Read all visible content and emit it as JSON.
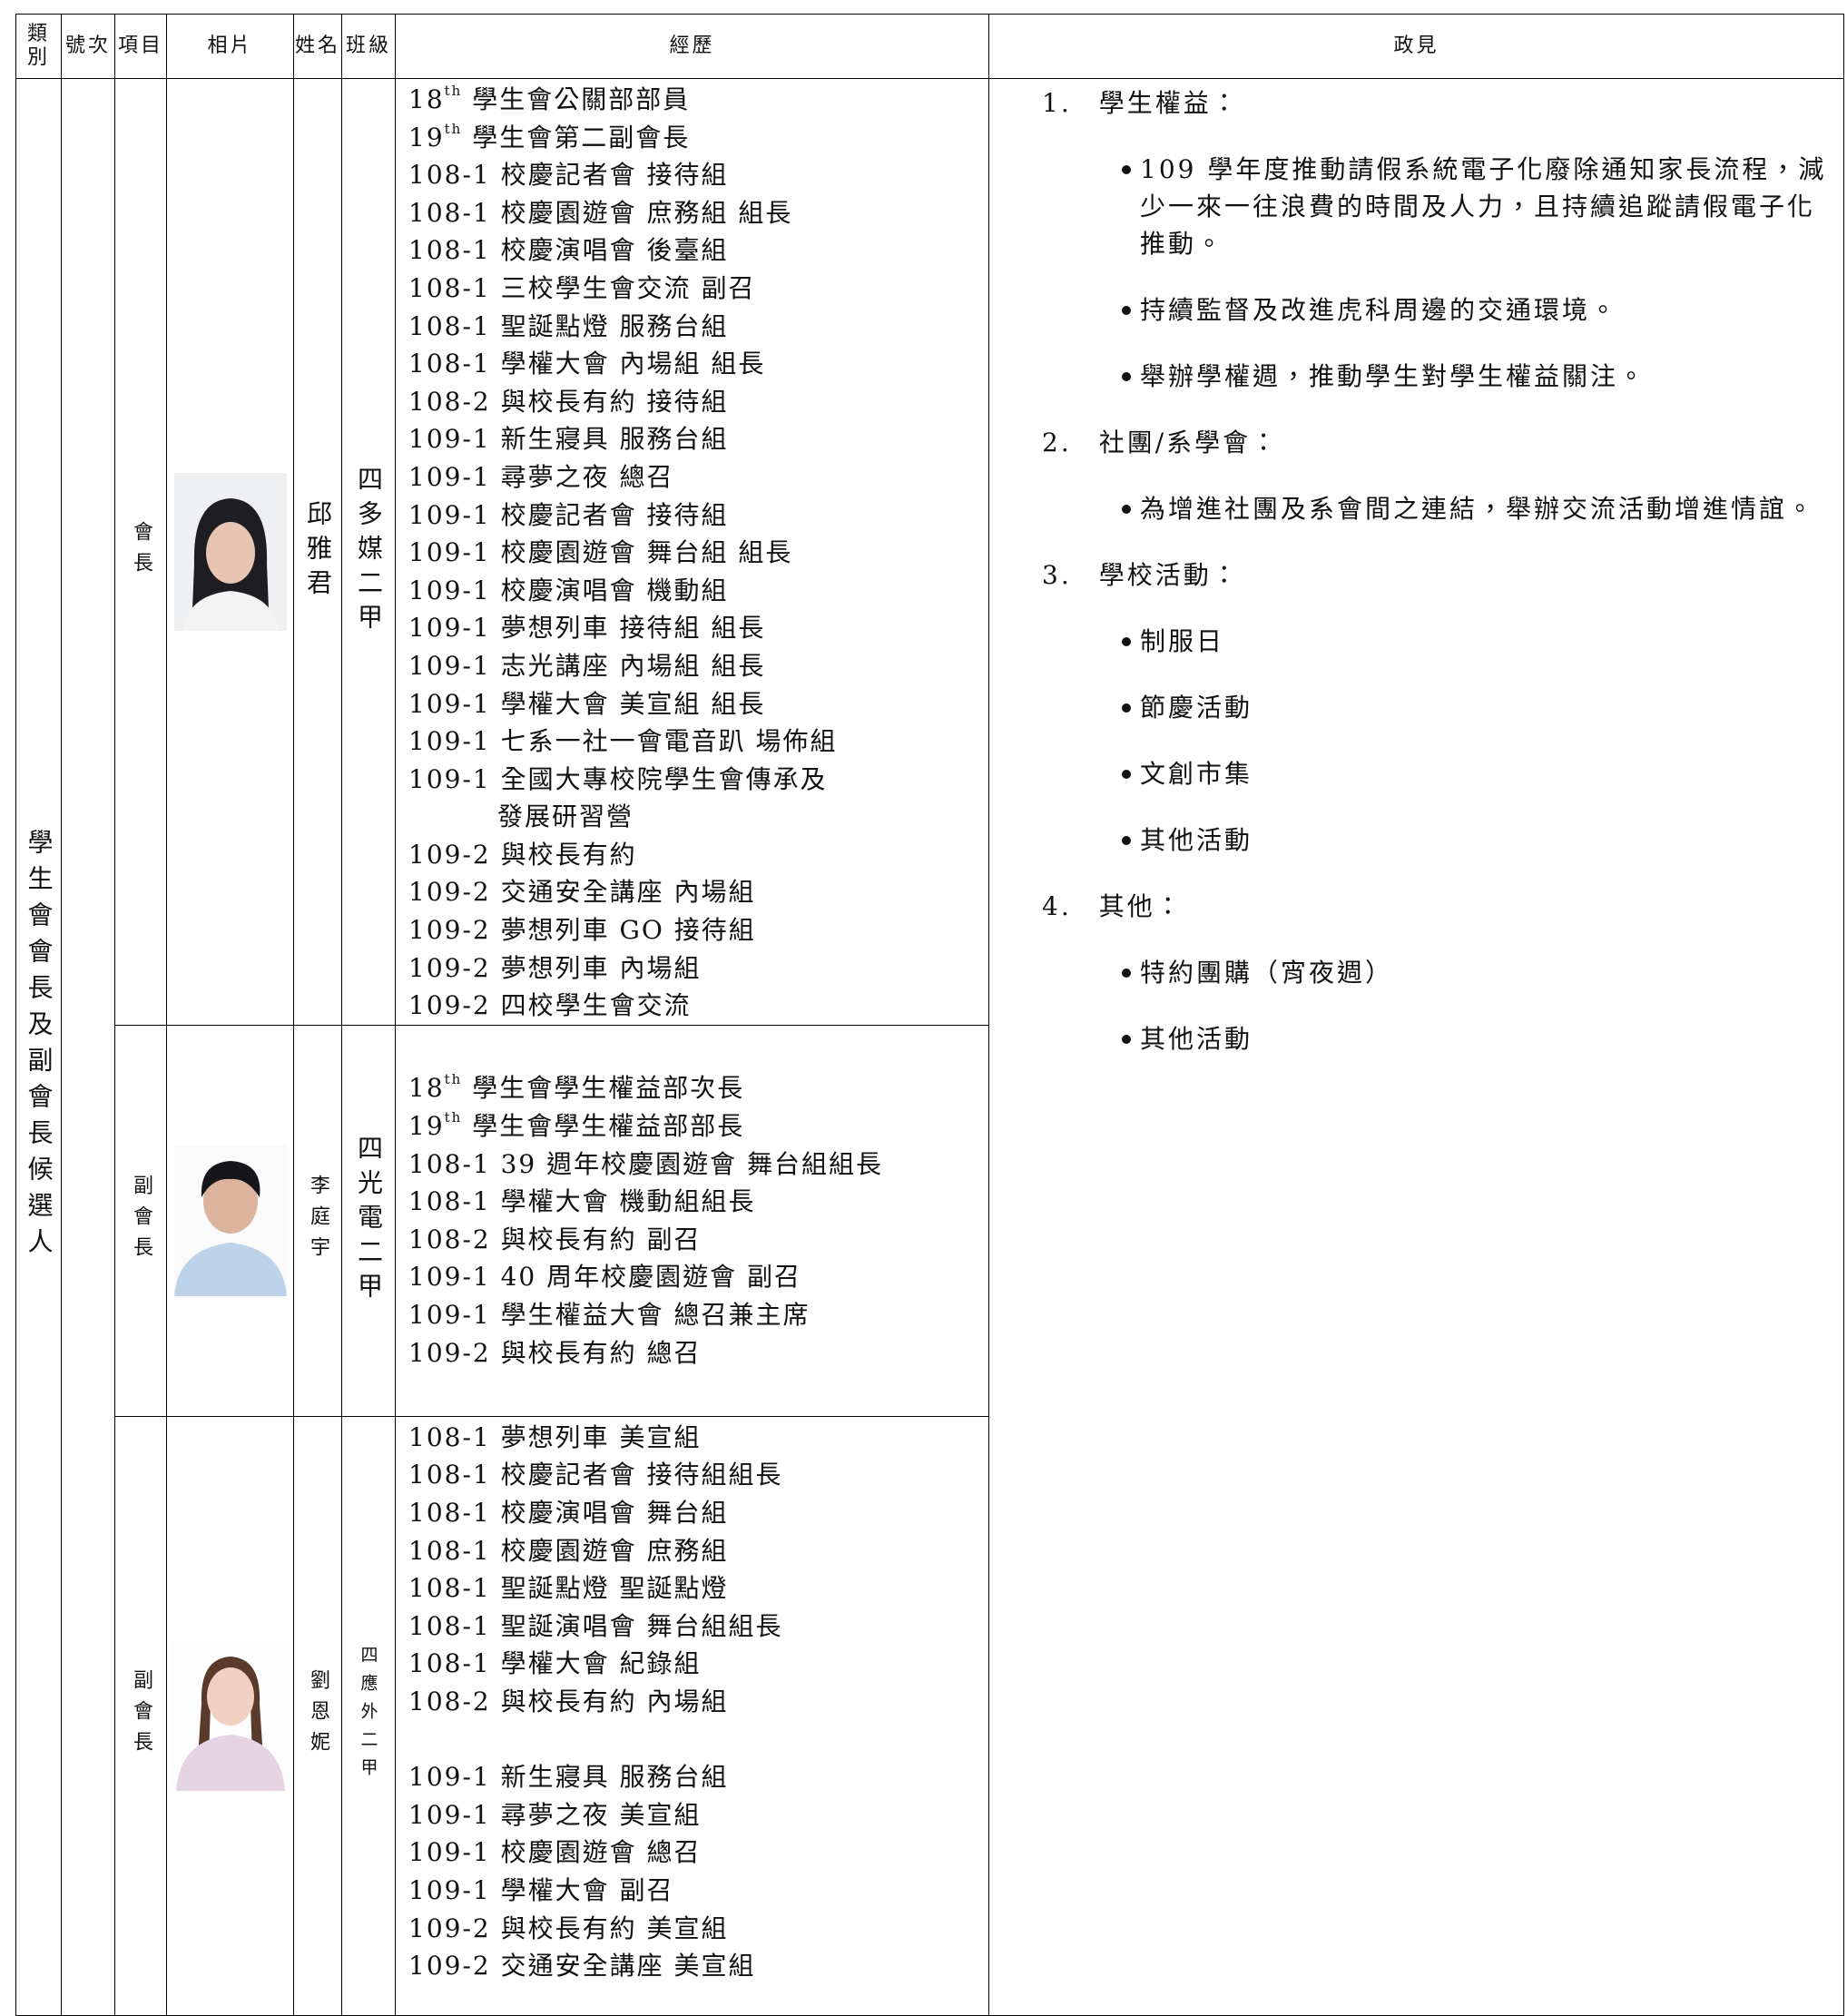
{
  "table": {
    "headers": [
      "類別",
      "號次",
      "項目",
      "相片",
      "姓名",
      "班級",
      "經歷",
      "政見"
    ],
    "category": "學生會會長及副會長候選人",
    "candidates": [
      {
        "role": "會長",
        "name": "邱雅君",
        "class": "四多媒二甲",
        "experience_groups": [
          [
            {
              "ordinal": "18",
              "suffix": "th",
              "text": " 學生會公關部部員"
            },
            {
              "ordinal": "19",
              "suffix": "th",
              "text": " 學生會第二副會長"
            },
            "108-1 校慶記者會 接待組",
            "108-1 校慶園遊會 庶務組 組長",
            "108-1 校慶演唱會 後臺組",
            "108-1 三校學生會交流 副召",
            "108-1 聖誕點燈 服務台組",
            "108-1 學權大會 內場組 組長",
            "108-2 與校長有約 接待組",
            "109-1 新生寢具 服務台組",
            "109-1 尋夢之夜 總召",
            "109-1 校慶記者會 接待組",
            "109-1 校慶園遊會 舞台組 組長",
            "109-1 校慶演唱會 機動組",
            "109-1 夢想列車 接待組 組長",
            "109-1 志光講座 內場組 組長",
            "109-1 學權大會 美宣組 組長",
            "109-1 七系一社一會電音趴 場佈組",
            [
              "109-1 全國大專校院學生會傳承及",
              "發展研習營"
            ],
            "109-2 與校長有約",
            "109-2 交通安全講座 內場組",
            "109-2 夢想列車 GO 接待組",
            "109-2 夢想列車 內場組",
            "109-2 四校學生會交流"
          ]
        ]
      },
      {
        "role": "副會長",
        "name": "李庭宇",
        "class": "四光電二甲",
        "experience_groups": [
          [
            {
              "ordinal": "18",
              "suffix": "th",
              "text": " 學生會學生權益部次長"
            },
            {
              "ordinal": "19",
              "suffix": "th",
              "text": " 學生會學生權益部部長"
            },
            "108-1 39 週年校慶園遊會 舞台組組長",
            "108-1 學權大會 機動組組長",
            "108-2 與校長有約 副召",
            "109-1 40 周年校慶園遊會 副召",
            "109-1 學生權益大會 總召兼主席",
            "109-2 與校長有約 總召"
          ]
        ]
      },
      {
        "role": "副會長",
        "name": "劉恩妮",
        "class": "四應外二甲",
        "experience_groups": [
          [
            "108-1 夢想列車 美宣組",
            "108-1 校慶記者會 接待組組長",
            "108-1 校慶演唱會 舞台組",
            "108-1 校慶園遊會 庶務組",
            "108-1 聖誕點燈 聖誕點燈",
            "108-1 聖誕演唱會 舞台組組長",
            "108-1 學權大會 紀錄組",
            "108-2 與校長有約 內場組"
          ],
          [
            "109-1 新生寢具 服務台組",
            "109-1 尋夢之夜 美宣組",
            "109-1 校慶園遊會 總召",
            "109-1 學權大會 副召",
            "109-2 與校長有約 美宣組",
            "109-2 交通安全講座 美宣組"
          ]
        ]
      }
    ],
    "platform": [
      {
        "number": "1.",
        "title": "學生權益：",
        "items": [
          "109 學年度推動請假系統電子化廢除通知家長流程，減少一來一往浪費的時間及人力，且持續追蹤請假電子化推動。",
          "持續監督及改進虎科周邊的交通環境。",
          "舉辦學權週，推動學生對學生權益關注。"
        ]
      },
      {
        "number": "2.",
        "title": "社團/系學會：",
        "items": [
          "為增進社團及系會間之連結，舉辦交流活動增進情誼。"
        ]
      },
      {
        "number": "3.",
        "title": "學校活動：",
        "items": [
          "制服日",
          "節慶活動",
          "文創市集",
          "其他活動"
        ]
      },
      {
        "number": "4.",
        "title": "其他：",
        "items": [
          "特約團購（宵夜週）",
          "其他活動"
        ]
      }
    ]
  }
}
